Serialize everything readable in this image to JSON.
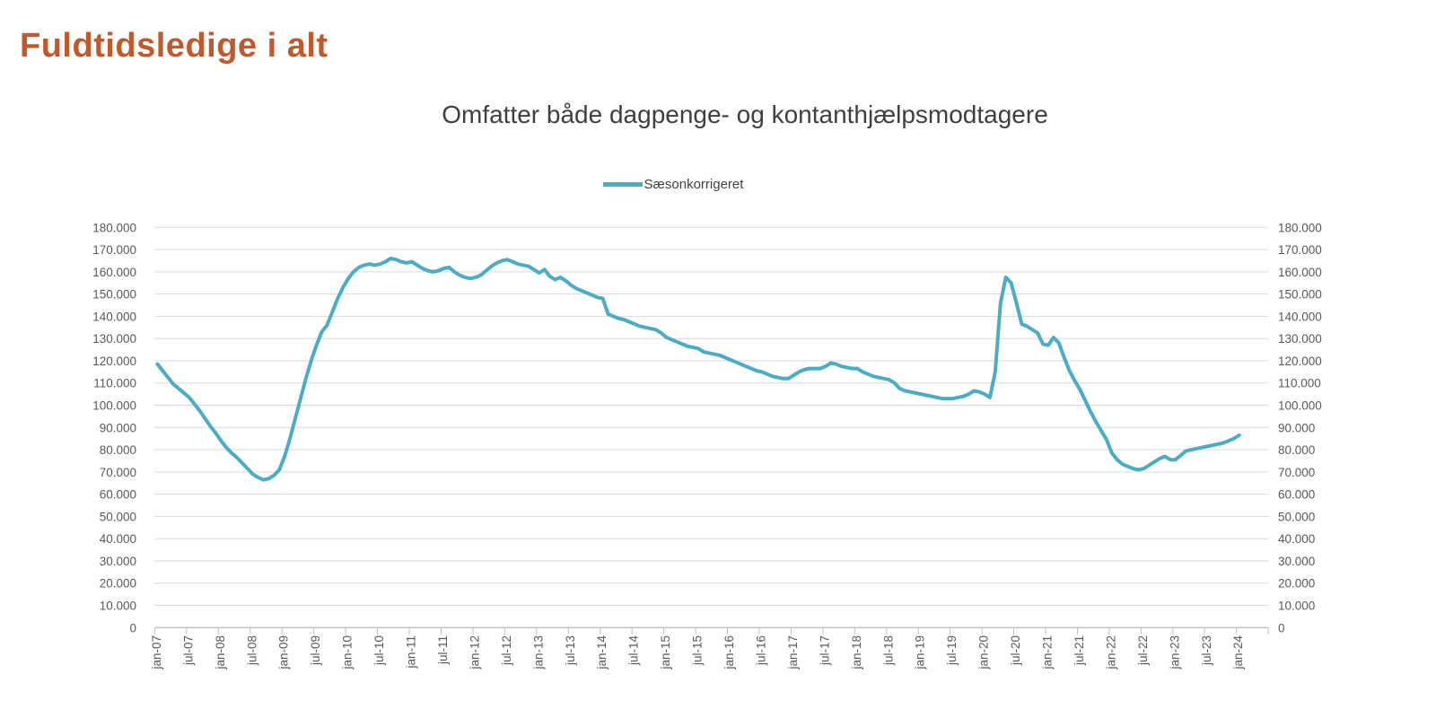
{
  "header": {
    "title": "Fuldtidsledige i alt"
  },
  "theme": {
    "title_color": "#C0592B",
    "line_color": "#4AACC5",
    "subtitle_color": "#3F3F3F",
    "legend_text_color": "#404040",
    "axis_text_color": "#595959",
    "gridline_color": "#D9D9D9",
    "axis_line_color": "#BFBFBF",
    "background_color": "#FFFFFF"
  },
  "chart_data": {
    "type": "line",
    "title": "Fuldtidsledige i alt",
    "subtitle": "Omfatter både dagpenge- og kontanthjælpsmodtagere",
    "legend_label": "Sæsonkorrigeret",
    "legend_position": "top-center",
    "grid": "horizontal",
    "ylim": [
      0,
      180000
    ],
    "y_tick_step": 10000,
    "y_tick_labels": [
      "0",
      "10.000",
      "20.000",
      "30.000",
      "40.000",
      "50.000",
      "60.000",
      "70.000",
      "80.000",
      "90.000",
      "100.000",
      "110.000",
      "120.000",
      "130.000",
      "140.000",
      "150.000",
      "160.000",
      "170.000",
      "180.000"
    ],
    "y_axis_sides": "both",
    "x_frequency": "monthly",
    "x_start": "jan-07",
    "x_end": "jan-24",
    "x_tick_labels": [
      "jan-07",
      "jul-07",
      "jan-08",
      "jul-08",
      "jan-09",
      "jul-09",
      "jan-10",
      "jul-10",
      "jan-11",
      "jul-11",
      "jan-12",
      "jul-12",
      "jan-13",
      "jul-13",
      "jan-14",
      "jul-14",
      "jan-15",
      "jul-15",
      "jan-16",
      "jul-16",
      "jan-17",
      "jul-17",
      "jan-18",
      "jul-18",
      "jan-19",
      "jul-19",
      "jan-20",
      "jul-20",
      "jan-21",
      "jul-21",
      "jan-22",
      "jul-22",
      "jan-23",
      "jul-23",
      "jan-24"
    ],
    "x_tick_label_rotation": -90,
    "series": [
      {
        "name": "Sæsonkorrigeret",
        "values": [
          118500,
          115500,
          112500,
          109500,
          107500,
          105500,
          103500,
          100500,
          97500,
          94000,
          90500,
          87500,
          84000,
          81000,
          78500,
          76500,
          74000,
          71500,
          69000,
          67500,
          66500,
          67000,
          68500,
          71000,
          77000,
          85000,
          94000,
          103000,
          112000,
          120000,
          127000,
          133000,
          136000,
          142000,
          148000,
          153000,
          157000,
          160000,
          162000,
          163000,
          163500,
          163000,
          163500,
          164500,
          166000,
          165500,
          164500,
          164000,
          164500,
          163000,
          161500,
          160500,
          160000,
          160500,
          161500,
          162000,
          160000,
          158500,
          157500,
          157000,
          157500,
          158500,
          160500,
          162500,
          164000,
          165000,
          165500,
          164500,
          163500,
          163000,
          162500,
          161000,
          159500,
          161000,
          158000,
          156500,
          157500,
          156000,
          154000,
          152500,
          151500,
          150500,
          149500,
          148500,
          148000,
          141000,
          140000,
          139000,
          138500,
          137500,
          136500,
          135500,
          135000,
          134500,
          134000,
          132500,
          130500,
          129500,
          128500,
          127500,
          126500,
          126000,
          125500,
          124000,
          123500,
          123000,
          122500,
          121500,
          120500,
          119500,
          118500,
          117500,
          116500,
          115500,
          115000,
          114000,
          113000,
          112500,
          112000,
          112000,
          113500,
          115000,
          116000,
          116500,
          116500,
          116500,
          117500,
          119000,
          118500,
          117500,
          117000,
          116500,
          116500,
          115000,
          114000,
          113000,
          112500,
          112000,
          111500,
          110000,
          107500,
          106500,
          106000,
          105500,
          105000,
          104500,
          104000,
          103500,
          103000,
          103000,
          103000,
          103500,
          104000,
          105000,
          106500,
          106000,
          105000,
          103500,
          115000,
          146000,
          157500,
          155000,
          146000,
          136500,
          135500,
          134000,
          132500,
          127500,
          127000,
          130500,
          128000,
          121500,
          115500,
          111000,
          107000,
          102000,
          97000,
          92500,
          88500,
          84500,
          78500,
          75500,
          73500,
          72500,
          71500,
          71000,
          71500,
          73000,
          74500,
          76000,
          77000,
          75500,
          75500,
          77500,
          79500,
          80000,
          80500,
          81000,
          81500,
          82000,
          82500,
          83000,
          84000,
          85000,
          86500
        ]
      }
    ]
  }
}
